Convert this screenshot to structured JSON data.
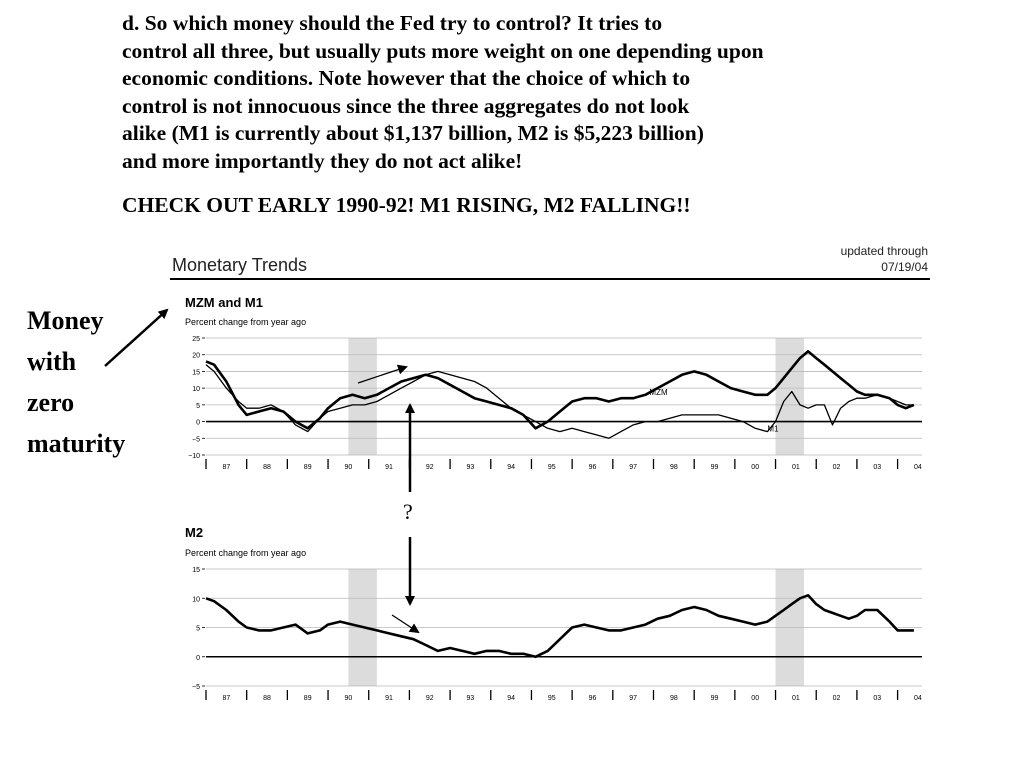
{
  "slide": {
    "lines": [
      "d. So which money should the Fed try to control?  It tries to",
      "control all three, but usually puts more weight on one depending upon",
      "economic conditions.  Note however that the choice of which to",
      "control is not innocuous since the three aggregates do not look",
      "alike (M1 is currently about $1,137 billion, M2 is $5,223 billion)",
      "and more importantly they do not act alike!"
    ],
    "callout": "CHECK OUT EARLY 1990-92! M1 RISING, M2 FALLING!!",
    "annotation_words": [
      "Money",
      "with",
      "zero",
      "maturity"
    ],
    "question_mark": "?"
  },
  "figure": {
    "title": "Monetary Trends",
    "updated_label": "updated through",
    "updated_date": "07/19/04"
  },
  "chart_data": [
    {
      "type": "line",
      "title": "MZM and M1",
      "ylabel": "Percent change from year ago",
      "ylim": [
        -10,
        25
      ],
      "yticks": [
        25,
        20,
        15,
        10,
        5,
        0,
        -5,
        -10
      ],
      "xlim": [
        1987,
        2004.6
      ],
      "xtick_labels": [
        "87",
        "88",
        "89",
        "90",
        "91",
        "92",
        "93",
        "94",
        "95",
        "96",
        "97",
        "98",
        "99",
        "00",
        "01",
        "02",
        "03",
        "04"
      ],
      "recessions": [
        [
          1990.5,
          1991.2
        ],
        [
          2001.0,
          2001.7
        ]
      ],
      "grid": true,
      "series": [
        {
          "name": "MZM",
          "color": "#000000",
          "x": [
            1987.0,
            1987.2,
            1987.5,
            1987.8,
            1988.0,
            1988.3,
            1988.6,
            1988.9,
            1989.2,
            1989.5,
            1989.8,
            1990.0,
            1990.3,
            1990.6,
            1990.9,
            1991.2,
            1991.5,
            1991.8,
            1992.1,
            1992.4,
            1992.7,
            1993.0,
            1993.3,
            1993.6,
            1993.9,
            1994.2,
            1994.5,
            1994.8,
            1995.1,
            1995.4,
            1995.7,
            1996.0,
            1996.3,
            1996.6,
            1996.9,
            1997.2,
            1997.5,
            1997.8,
            1998.1,
            1998.4,
            1998.7,
            1999.0,
            1999.3,
            1999.6,
            1999.9,
            2000.2,
            2000.5,
            2000.8,
            2001.0,
            2001.2,
            2001.4,
            2001.6,
            2001.8,
            2002.0,
            2002.2,
            2002.4,
            2002.6,
            2002.8,
            2003.0,
            2003.2,
            2003.5,
            2003.8,
            2004.0,
            2004.2,
            2004.4
          ],
          "y": [
            18,
            17,
            12,
            5,
            2,
            3,
            4,
            3,
            0,
            -2,
            1,
            4,
            7,
            8,
            7,
            8,
            10,
            12,
            13,
            14,
            13,
            11,
            9,
            7,
            6,
            5,
            4,
            2,
            -2,
            0,
            3,
            6,
            7,
            7,
            6,
            7,
            7,
            8,
            10,
            12,
            14,
            15,
            14,
            12,
            10,
            9,
            8,
            8,
            10,
            13,
            16,
            19,
            21,
            19,
            17,
            15,
            13,
            11,
            9,
            8,
            8,
            7,
            5,
            4,
            5
          ],
          "label_x": 1997.9,
          "label_y": 8
        },
        {
          "name": "M1",
          "color": "#000000",
          "x": [
            1987.0,
            1987.2,
            1987.5,
            1987.8,
            1988.0,
            1988.3,
            1988.6,
            1988.9,
            1989.2,
            1989.5,
            1989.8,
            1990.0,
            1990.3,
            1990.6,
            1990.9,
            1991.2,
            1991.5,
            1991.8,
            1992.1,
            1992.4,
            1992.7,
            1993.0,
            1993.3,
            1993.6,
            1993.9,
            1994.2,
            1994.5,
            1994.8,
            1995.1,
            1995.4,
            1995.7,
            1996.0,
            1996.3,
            1996.6,
            1996.9,
            1997.2,
            1997.5,
            1997.8,
            1998.1,
            1998.4,
            1998.7,
            1999.0,
            1999.3,
            1999.6,
            1999.9,
            2000.2,
            2000.5,
            2000.8,
            2001.0,
            2001.2,
            2001.4,
            2001.6,
            2001.8,
            2002.0,
            2002.2,
            2002.4,
            2002.6,
            2002.8,
            2003.0,
            2003.2,
            2003.5,
            2003.8,
            2004.0,
            2004.2,
            2004.4
          ],
          "y": [
            17,
            15,
            10,
            6,
            4,
            4,
            5,
            3,
            -1,
            -3,
            1,
            3,
            4,
            5,
            5,
            6,
            8,
            10,
            12,
            14,
            15,
            14,
            13,
            12,
            10,
            7,
            4,
            2,
            0,
            -2,
            -3,
            -2,
            -3,
            -4,
            -5,
            -3,
            -1,
            0,
            0,
            1,
            2,
            2,
            2,
            2,
            1,
            0,
            -2,
            -3,
            0,
            6,
            9,
            5,
            4,
            5,
            5,
            -1,
            4,
            6,
            7,
            7,
            8,
            7,
            6,
            5,
            5
          ],
          "label_x": 2000.8,
          "label_y": -3
        }
      ]
    },
    {
      "type": "line",
      "title": "M2",
      "ylabel": "Percent change from year ago",
      "ylim": [
        -5,
        15
      ],
      "yticks": [
        15,
        10,
        5,
        0,
        -5
      ],
      "xlim": [
        1987,
        2004.6
      ],
      "xtick_labels": [
        "87",
        "88",
        "89",
        "90",
        "91",
        "92",
        "93",
        "94",
        "95",
        "96",
        "97",
        "98",
        "99",
        "00",
        "01",
        "02",
        "03",
        "04"
      ],
      "recessions": [
        [
          1990.5,
          1991.2
        ],
        [
          2001.0,
          2001.7
        ]
      ],
      "grid": true,
      "series": [
        {
          "name": "M2",
          "color": "#000000",
          "x": [
            1987.0,
            1987.2,
            1987.5,
            1987.8,
            1988.0,
            1988.3,
            1988.6,
            1988.9,
            1989.2,
            1989.5,
            1989.8,
            1990.0,
            1990.3,
            1990.6,
            1990.9,
            1991.2,
            1991.5,
            1991.8,
            1992.1,
            1992.4,
            1992.7,
            1993.0,
            1993.3,
            1993.6,
            1993.9,
            1994.2,
            1994.5,
            1994.8,
            1995.1,
            1995.4,
            1995.7,
            1996.0,
            1996.3,
            1996.6,
            1996.9,
            1997.2,
            1997.5,
            1997.8,
            1998.1,
            1998.4,
            1998.7,
            1999.0,
            1999.3,
            1999.6,
            1999.9,
            2000.2,
            2000.5,
            2000.8,
            2001.0,
            2001.2,
            2001.4,
            2001.6,
            2001.8,
            2002.0,
            2002.2,
            2002.4,
            2002.6,
            2002.8,
            2003.0,
            2003.2,
            2003.5,
            2003.8,
            2004.0,
            2004.2,
            2004.4
          ],
          "y": [
            10,
            9.5,
            8,
            6,
            5,
            4.5,
            4.5,
            5,
            5.5,
            4,
            4.5,
            5.5,
            6,
            5.5,
            5,
            4.5,
            4,
            3.5,
            3,
            2,
            1,
            1.5,
            1,
            0.5,
            1,
            1,
            0.5,
            0.5,
            0,
            1,
            3,
            5,
            5.5,
            5,
            4.5,
            4.5,
            5,
            5.5,
            6.5,
            7,
            8,
            8.5,
            8,
            7,
            6.5,
            6,
            5.5,
            6,
            7,
            8,
            9,
            10,
            10.5,
            9,
            8,
            7.5,
            7,
            6.5,
            7,
            8,
            8,
            6,
            4.5,
            4.5,
            4.5
          ],
          "label_x": null,
          "label_y": null
        }
      ]
    }
  ]
}
